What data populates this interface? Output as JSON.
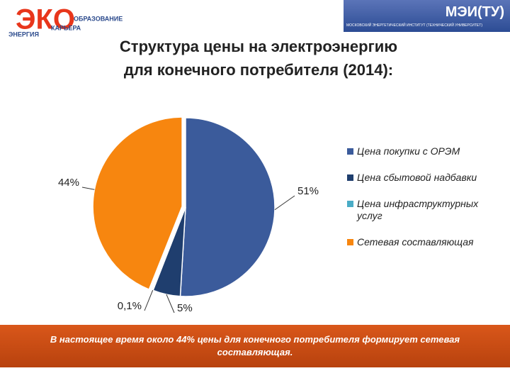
{
  "header": {
    "logo_main": "ЭКО",
    "logo_lines": [
      "ОБРАЗОВАНИЕ",
      "КАРЬЕРА",
      "ЭНЕРГИЯ"
    ],
    "institute": "МЭИ(ТУ)",
    "institute_full": "МОСКОВСКИЙ ЭНЕРГЕТИЧЕСКИЙ ИНСТИТУТ (ТЕХНИЧЕСКИЙ УНИВЕРСИТЕТ)"
  },
  "chart_data": {
    "type": "pie",
    "title": [
      "Структура цены на электроэнергию",
      "для конечного потребителя (2014):"
    ],
    "categories": [
      "Цена покупки с ОРЭМ",
      "Цена сбытовой надбавки",
      "Цена инфраструктурных услуг",
      "Сетевая составляющая"
    ],
    "values": [
      51,
      5,
      0.1,
      44
    ],
    "value_labels": [
      "51%",
      "5%",
      "0,1%",
      "44%"
    ],
    "colors": [
      "#3b5b9b",
      "#1f3e6e",
      "#4aacc6",
      "#f7860f"
    ],
    "legend": "right"
  },
  "footer": {
    "text": "В настоящее время около 44% цены для конечного потребителя формирует сетевая составляющая."
  }
}
